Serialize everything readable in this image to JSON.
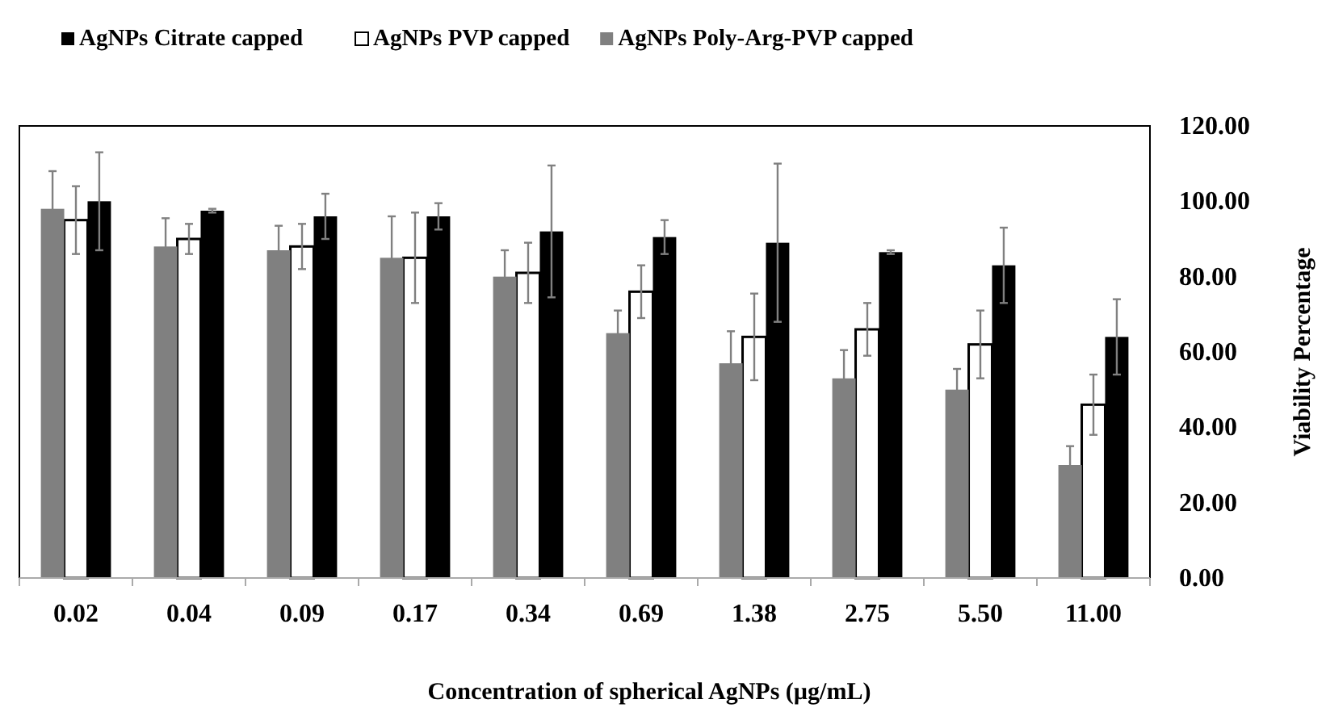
{
  "chart_data": {
    "type": "bar",
    "xlabel": "Concentration of spherical AgNPs (µg/mL)",
    "ylabel": "Viability Percentage",
    "categories": [
      "0.02",
      "0.04",
      "0.09",
      "0.17",
      "0.34",
      "0.69",
      "1.38",
      "2.75",
      "5.50",
      "11.00"
    ],
    "series": [
      {
        "name": "AgNPs Citrate capped",
        "color": "#000000",
        "values": [
          100,
          97.5,
          96,
          96,
          92,
          90.5,
          89,
          86.5,
          83,
          64
        ],
        "errors": [
          13,
          0.5,
          6,
          3.5,
          17.5,
          4.5,
          21,
          0.5,
          10,
          10
        ]
      },
      {
        "name": "AgNPs PVP capped",
        "color": "#ffffff",
        "values": [
          95,
          90,
          88,
          85,
          81,
          76,
          64,
          66,
          62,
          46
        ],
        "errors": [
          9,
          4,
          6,
          12,
          8,
          7,
          11.5,
          7,
          9,
          8
        ]
      },
      {
        "name": "AgNPs Poly-Arg-PVP  capped",
        "color": "#808080",
        "values": [
          98,
          88,
          87,
          85,
          80,
          65,
          57,
          53,
          50,
          30
        ],
        "errors": [
          10,
          7.5,
          6.5,
          11,
          7,
          6,
          8.5,
          7.5,
          5.5,
          5
        ]
      }
    ],
    "ylim": [
      0,
      120
    ],
    "yticks": [
      {
        "value": 0,
        "label": "0.00"
      },
      {
        "value": 20,
        "label": "20.00"
      },
      {
        "value": 40,
        "label": "40.00"
      },
      {
        "value": 60,
        "label": "60.00"
      },
      {
        "value": 80,
        "label": "80.00"
      },
      {
        "value": 100,
        "label": "100.00"
      },
      {
        "value": 120,
        "label": "120.00"
      }
    ],
    "legend": "top",
    "grid": false
  }
}
